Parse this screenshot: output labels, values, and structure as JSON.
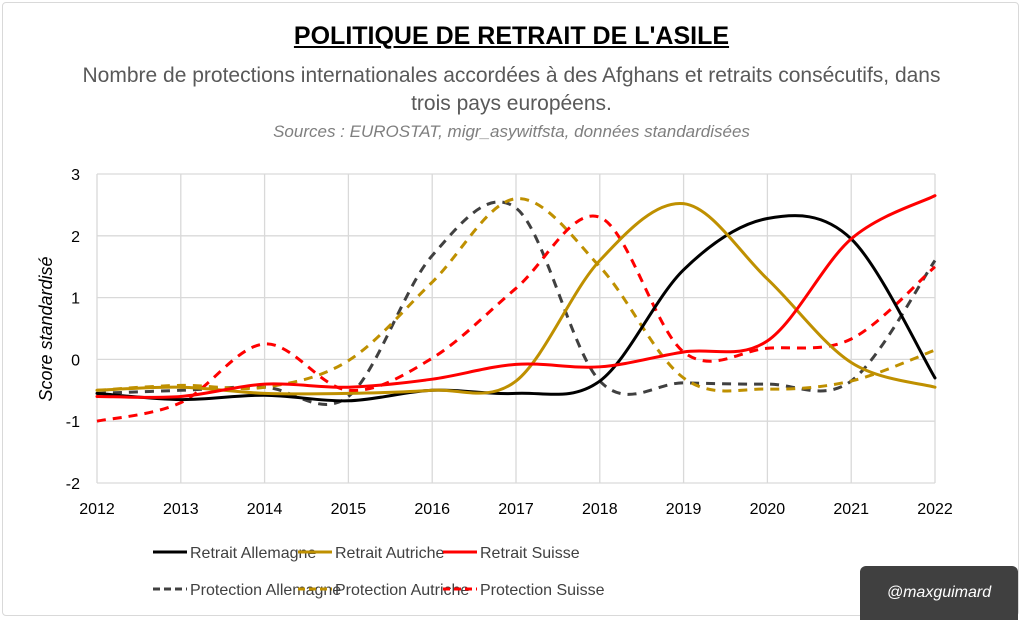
{
  "chart_data": {
    "type": "line",
    "title": "POLITIQUE DE RETRAIT DE L'ASILE",
    "subtitle": "Nombre de protections internationales accordées à des Afghans et retraits consécutifs, dans trois pays européens.",
    "sources": "Sources : EUROSTAT, migr_asywitfsta, données standardisées",
    "xlabel": "",
    "ylabel": "Score standardisé",
    "ylim": [
      -2,
      3
    ],
    "yticks": [
      "3",
      "2",
      "1",
      "0",
      "-1",
      "-2"
    ],
    "grid": true,
    "smoothed": true,
    "legend_position": "bottom",
    "categories": [
      "2012",
      "2013",
      "2014",
      "2015",
      "2016",
      "2017",
      "2018",
      "2019",
      "2020",
      "2021",
      "2022"
    ],
    "series": [
      {
        "name": "Retrait Allemagne",
        "color": "#000000",
        "dash": false,
        "values": [
          -0.55,
          -0.65,
          -0.58,
          -0.67,
          -0.5,
          -0.55,
          -0.35,
          1.45,
          2.28,
          1.95,
          -0.3
        ]
      },
      {
        "name": "Retrait Autriche",
        "color": "#BF9000",
        "dash": false,
        "values": [
          -0.5,
          -0.45,
          -0.55,
          -0.55,
          -0.5,
          -0.35,
          1.6,
          2.52,
          1.3,
          -0.05,
          -0.45
        ]
      },
      {
        "name": "Retrait Suisse",
        "color": "#FF0000",
        "dash": false,
        "values": [
          -0.6,
          -0.6,
          -0.4,
          -0.45,
          -0.32,
          -0.08,
          -0.12,
          0.12,
          0.3,
          1.95,
          2.65
        ]
      },
      {
        "name": "Protection Allemagne",
        "color": "#404040",
        "dash": true,
        "values": [
          -0.55,
          -0.5,
          -0.45,
          -0.6,
          1.68,
          2.45,
          -0.35,
          -0.38,
          -0.4,
          -0.35,
          1.6
        ]
      },
      {
        "name": "Protection Autriche",
        "color": "#BF9000",
        "dash": true,
        "values": [
          -0.5,
          -0.42,
          -0.45,
          -0.02,
          1.25,
          2.6,
          1.5,
          -0.3,
          -0.48,
          -0.35,
          0.15
        ]
      },
      {
        "name": "Protection Suisse",
        "color": "#FF0000",
        "dash": true,
        "values": [
          -1.0,
          -0.7,
          0.25,
          -0.5,
          0.02,
          1.15,
          2.3,
          0.12,
          0.18,
          0.33,
          1.5
        ]
      }
    ]
  },
  "watermark": "@maxguimard"
}
